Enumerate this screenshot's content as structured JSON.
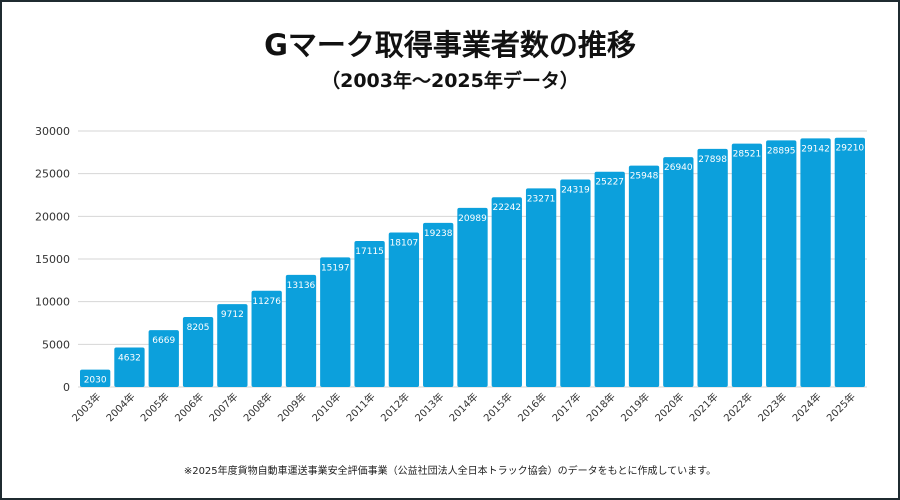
{
  "title": "Gマーク取得事業者数の推移",
  "subtitle": "（2003年〜2025年データ）",
  "note": "※2025年度貨物自動車運送事業安全評価事業（公益社団法人全日本トラック協会）のデータをもとに作成しています。",
  "chart_data": {
    "type": "bar",
    "title": "Gマーク取得事業者数の推移",
    "subtitle": "（2003年〜2025年データ）",
    "categories": [
      "2003年",
      "2004年",
      "2005年",
      "2006年",
      "2007年",
      "2008年",
      "2009年",
      "2010年",
      "2011年",
      "2012年",
      "2013年",
      "2014年",
      "2015年",
      "2016年",
      "2017年",
      "2018年",
      "2019年",
      "2020年",
      "2021年",
      "2022年",
      "2023年",
      "2024年",
      "2025年"
    ],
    "values": [
      2030,
      4632,
      6669,
      8205,
      9712,
      11276,
      13136,
      15197,
      17115,
      18107,
      19238,
      20989,
      22242,
      23271,
      24319,
      25227,
      25948,
      26940,
      27898,
      28521,
      28895,
      29142,
      29210
    ],
    "ylim": [
      0,
      30000
    ],
    "yticks": [
      0,
      5000,
      10000,
      15000,
      20000,
      25000,
      30000
    ],
    "grid": true,
    "bar_color": "#0ca0dc",
    "data_labels": true
  }
}
